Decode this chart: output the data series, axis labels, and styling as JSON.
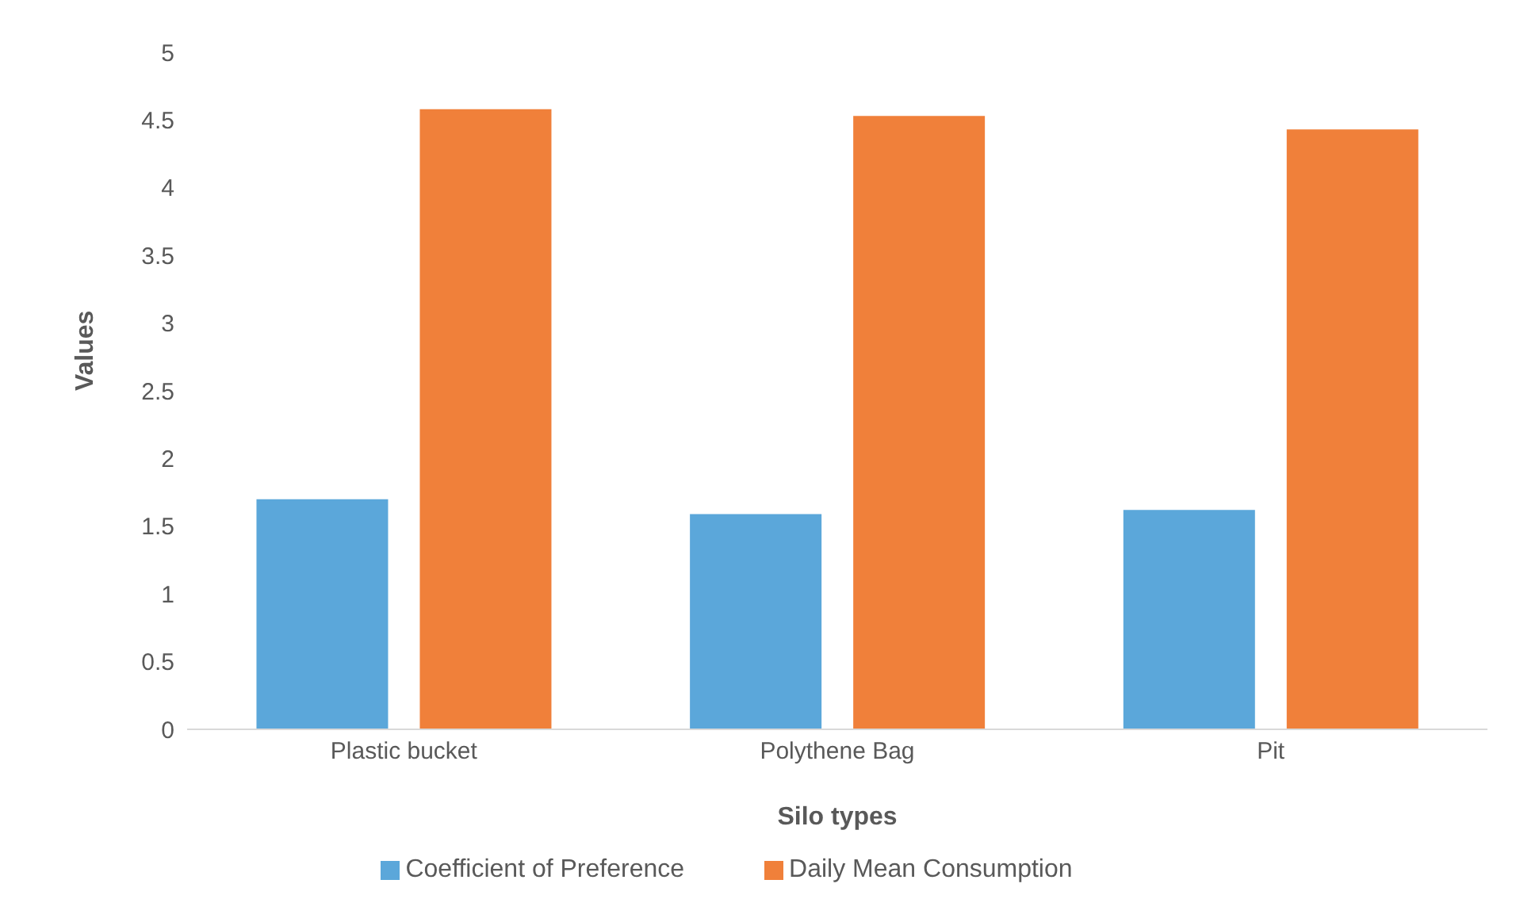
{
  "chart_data": {
    "type": "bar",
    "xlabel": "Silo types",
    "ylabel": "Values",
    "categories": [
      "Plastic bucket",
      "Polythene Bag",
      "Pit"
    ],
    "series": [
      {
        "name": "Coefficient of Preference",
        "color": "#5ba7da",
        "values": [
          1.7,
          1.59,
          1.62
        ]
      },
      {
        "name": "Daily Mean Consumption",
        "color": "#f0803a",
        "values": [
          4.58,
          4.53,
          4.43
        ]
      }
    ],
    "ylim": [
      0,
      5
    ],
    "yticks": [
      0,
      0.5,
      1,
      1.5,
      2,
      2.5,
      3,
      3.5,
      4,
      4.5,
      5
    ],
    "grid": false,
    "legend": "bottom"
  }
}
